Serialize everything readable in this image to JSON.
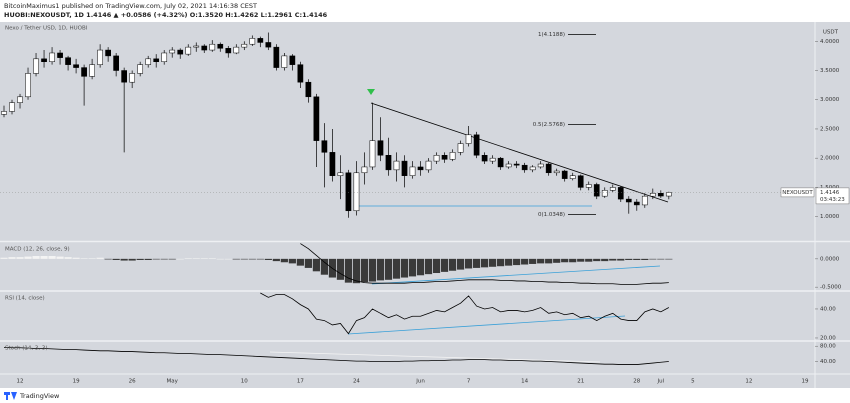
{
  "header": {
    "published": "BitcoinMaximus1 published on TradingView.com, July 02, 2021 14:16:38 CEST",
    "symbol_line": "HUOBI:NEXOUSDT, 1D 1.4146 ▲ +0.0586 (+4.32%) O:1.3520 H:1.4262 L:1.2961 C:1.4146"
  },
  "footer": {
    "brand": "TradingView"
  },
  "chart_data": [
    {
      "type": "candlestick",
      "title": "Nexo / Tether USD, 1D, HUOBI",
      "y_label": "USDT",
      "grid": false,
      "categories": [
        null,
        null,
        "12",
        null,
        null,
        null,
        null,
        null,
        null,
        "19",
        null,
        null,
        null,
        null,
        null,
        null,
        "26",
        null,
        null,
        null,
        null,
        "May",
        null,
        null,
        null,
        null,
        null,
        null,
        null,
        null,
        "10",
        null,
        null,
        null,
        null,
        null,
        null,
        "17",
        null,
        null,
        null,
        null,
        null,
        null,
        "24",
        null,
        null,
        null,
        null,
        null,
        null,
        null,
        "Jun",
        null,
        null,
        null,
        null,
        null,
        "7",
        null,
        null,
        null,
        null,
        null,
        null,
        "14",
        null,
        null,
        null,
        null,
        null,
        null,
        "21",
        null,
        null,
        null,
        null,
        null,
        null,
        "28",
        null,
        null,
        "Jul",
        null,
        null,
        null,
        "5",
        null,
        null,
        null,
        null,
        null,
        null,
        "12",
        null,
        null,
        null,
        null,
        null,
        null,
        "19"
      ],
      "series": [
        {
          "name": "NEXOUSDT",
          "up_color": "#ffffff",
          "down_color": "#000000",
          "open": [
            2.75,
            2.8,
            2.95,
            3.05,
            3.45,
            3.7,
            3.65,
            3.8,
            3.72,
            3.6,
            3.55,
            3.4,
            3.6,
            3.85,
            3.75,
            3.5,
            3.3,
            3.45,
            3.6,
            3.7,
            3.65,
            3.8,
            3.85,
            3.78,
            3.9,
            3.92,
            3.85,
            3.95,
            3.88,
            3.8,
            3.9,
            3.95,
            4.05,
            3.98,
            3.9,
            3.55,
            3.75,
            3.6,
            3.3,
            3.05,
            2.3,
            2.1,
            1.7,
            1.75,
            1.1,
            1.75,
            1.85,
            2.3,
            2.05,
            1.8,
            1.95,
            1.7,
            1.85,
            1.8,
            1.95,
            2.05,
            1.98,
            2.1,
            2.25,
            2.4,
            2.05,
            1.95,
            2.0,
            1.85,
            1.9,
            1.88,
            1.8,
            1.85,
            1.9,
            1.75,
            1.78,
            1.65,
            1.7,
            1.5,
            1.55,
            1.35,
            1.45,
            1.5,
            1.3,
            1.25,
            1.2,
            1.35,
            1.4,
            1.352,
            null,
            null,
            null,
            null,
            null,
            null,
            null,
            null,
            null,
            null,
            null,
            null,
            null,
            null,
            null,
            null,
            null
          ],
          "high": [
            2.9,
            3.0,
            3.1,
            3.55,
            3.8,
            3.85,
            3.9,
            3.85,
            3.75,
            3.7,
            3.6,
            3.7,
            3.95,
            3.9,
            3.8,
            3.55,
            3.5,
            3.65,
            3.75,
            3.78,
            3.85,
            3.9,
            3.88,
            3.95,
            3.98,
            3.95,
            4.02,
            3.98,
            3.92,
            3.95,
            4.0,
            4.1,
            4.08,
            4.15,
            3.95,
            3.8,
            3.78,
            3.65,
            3.35,
            3.1,
            2.6,
            2.5,
            2.05,
            1.8,
            1.95,
            2.1,
            2.95,
            2.7,
            2.35,
            2.1,
            2.05,
            1.95,
            1.95,
            2.0,
            2.1,
            2.1,
            2.15,
            2.3,
            2.55,
            2.45,
            2.1,
            2.05,
            2.02,
            1.95,
            1.95,
            1.92,
            1.88,
            1.95,
            1.92,
            1.82,
            1.8,
            1.75,
            1.72,
            1.6,
            1.58,
            1.5,
            1.55,
            1.52,
            1.35,
            1.3,
            1.4,
            1.48,
            1.45,
            1.4262,
            null,
            null,
            null,
            null,
            null,
            null,
            null,
            null,
            null,
            null,
            null,
            null,
            null,
            null,
            null,
            null,
            null
          ],
          "low": [
            2.7,
            2.75,
            2.85,
            3.0,
            3.4,
            3.55,
            3.6,
            3.6,
            3.5,
            3.45,
            2.9,
            3.35,
            3.55,
            3.65,
            3.4,
            2.1,
            3.2,
            3.4,
            3.55,
            3.55,
            3.6,
            3.72,
            3.7,
            3.75,
            3.82,
            3.8,
            3.82,
            3.82,
            3.72,
            3.78,
            3.85,
            3.92,
            3.9,
            3.85,
            3.5,
            3.5,
            3.5,
            3.2,
            2.95,
            1.85,
            1.5,
            1.6,
            1.3,
            0.98,
            1.02,
            1.55,
            1.8,
            1.95,
            1.7,
            1.6,
            1.5,
            1.65,
            1.7,
            1.75,
            1.9,
            1.92,
            1.95,
            2.05,
            2.2,
            2.0,
            1.9,
            1.9,
            1.8,
            1.82,
            1.83,
            1.75,
            1.76,
            1.82,
            1.7,
            1.7,
            1.6,
            1.62,
            1.45,
            1.45,
            1.3,
            1.32,
            1.42,
            1.25,
            1.05,
            1.1,
            1.15,
            1.3,
            1.32,
            1.2961,
            null,
            null,
            null,
            null,
            null,
            null,
            null,
            null,
            null,
            null,
            null,
            null,
            null,
            null,
            null,
            null,
            null
          ],
          "close": [
            2.8,
            2.95,
            3.05,
            3.45,
            3.7,
            3.65,
            3.8,
            3.72,
            3.6,
            3.55,
            3.4,
            3.6,
            3.85,
            3.75,
            3.5,
            3.3,
            3.45,
            3.6,
            3.7,
            3.65,
            3.8,
            3.85,
            3.78,
            3.9,
            3.92,
            3.85,
            3.95,
            3.88,
            3.8,
            3.9,
            3.95,
            4.05,
            3.98,
            3.9,
            3.55,
            3.75,
            3.6,
            3.3,
            3.05,
            2.3,
            2.1,
            1.7,
            1.75,
            1.1,
            1.75,
            1.85,
            2.3,
            2.05,
            1.8,
            1.95,
            1.7,
            1.85,
            1.8,
            1.95,
            2.05,
            1.98,
            2.1,
            2.25,
            2.4,
            2.05,
            1.95,
            2.0,
            1.85,
            1.9,
            1.88,
            1.8,
            1.85,
            1.9,
            1.75,
            1.78,
            1.65,
            1.7,
            1.5,
            1.55,
            1.35,
            1.45,
            1.5,
            1.3,
            1.25,
            1.2,
            1.35,
            1.4,
            1.352,
            1.4146,
            null,
            null,
            null,
            null,
            null,
            null,
            null,
            null,
            null,
            null,
            null,
            null,
            null,
            null,
            null,
            null,
            null
          ]
        }
      ],
      "ylim": [
        0.6,
        4.33
      ],
      "yticks": [
        {
          "value": 1,
          "label": "1.0000"
        },
        {
          "value": 1.5,
          "label": "1.5000"
        },
        {
          "value": 2,
          "label": "2.0000"
        },
        {
          "value": 2.5,
          "label": "2.5000"
        },
        {
          "value": 3,
          "label": "3.0000"
        },
        {
          "value": 3.5,
          "label": "3.5000"
        },
        {
          "value": 4,
          "label": "4.0000"
        }
      ],
      "fib_levels": [
        {
          "value": 4.1188,
          "label": "1(4.1188)"
        },
        {
          "value": 2.5768,
          "label": "0.5(2.5768)"
        },
        {
          "value": 1.0348,
          "label": "0(1.0348)"
        }
      ],
      "last_price": {
        "value": 1.4146,
        "countdown": "03:43:23"
      }
    },
    {
      "type": "macd",
      "title": "MACD (12, 26, close, 9)",
      "histogram": [
        0.02,
        0.03,
        0.03,
        0.04,
        0.05,
        0.05,
        0.05,
        0.04,
        0.03,
        0.02,
        0.01,
        0.01,
        0.02,
        -0.01,
        -0.02,
        -0.03,
        -0.03,
        -0.02,
        -0.02,
        -0.01,
        -0.01,
        -0.01,
        0,
        0.01,
        0.01,
        0.01,
        0.01,
        0,
        0,
        -0.01,
        -0.01,
        -0.01,
        -0.01,
        -0.02,
        -0.04,
        -0.06,
        -0.08,
        -0.12,
        -0.16,
        -0.22,
        -0.28,
        -0.33,
        -0.37,
        -0.42,
        -0.43,
        -0.41,
        -0.4,
        -0.38,
        -0.37,
        -0.35,
        -0.33,
        -0.31,
        -0.29,
        -0.27,
        -0.25,
        -0.23,
        -0.21,
        -0.19,
        -0.17,
        -0.16,
        -0.15,
        -0.14,
        -0.13,
        -0.12,
        -0.11,
        -0.1,
        -0.09,
        -0.08,
        -0.08,
        -0.07,
        -0.06,
        -0.06,
        -0.05,
        -0.05,
        -0.04,
        -0.04,
        -0.03,
        -0.03,
        -0.02,
        -0.02,
        -0.02,
        -0.01,
        -0.01,
        -0.01,
        null,
        null,
        null,
        null,
        null,
        null,
        null,
        null,
        null,
        null,
        null,
        null,
        null,
        null,
        null,
        null,
        null
      ],
      "histogram_colors": {
        "positive": "#f4f4f4",
        "negative": "#3a3a3a"
      },
      "series": [
        {
          "color": "#000000",
          "values": [
            null,
            null,
            null,
            null,
            null,
            null,
            null,
            null,
            null,
            null,
            null,
            null,
            null,
            null,
            null,
            null,
            null,
            null,
            null,
            null,
            null,
            null,
            null,
            null,
            null,
            null,
            null,
            null,
            null,
            null,
            null,
            null,
            null,
            null,
            null,
            null,
            null,
            0.27,
            0.18,
            0.06,
            -0.06,
            -0.17,
            -0.26,
            -0.34,
            -0.39,
            -0.42,
            -0.43,
            -0.43,
            -0.43,
            -0.43,
            -0.43,
            -0.42,
            -0.42,
            -0.41,
            -0.4,
            -0.4,
            -0.39,
            -0.38,
            -0.37,
            -0.37,
            -0.37,
            -0.37,
            -0.38,
            -0.38,
            -0.39,
            -0.39,
            -0.4,
            -0.4,
            -0.41,
            -0.41,
            -0.42,
            -0.42,
            -0.43,
            -0.43,
            -0.44,
            -0.44,
            -0.44,
            -0.45,
            -0.45,
            -0.45,
            -0.44,
            -0.43,
            -0.43,
            -0.42,
            null,
            null,
            null,
            null,
            null,
            null,
            null,
            null,
            null,
            null,
            null,
            null,
            null,
            null,
            null,
            null,
            null
          ]
        }
      ],
      "ylim": [
        -0.55,
        0.28
      ],
      "yticks": [
        {
          "value": 0,
          "label": "0.0000"
        },
        {
          "value": -0.5,
          "label": "-0.5000"
        }
      ]
    },
    {
      "type": "line",
      "title": "RSI (14, close)",
      "series": [
        {
          "color": "#000000",
          "values": [
            null,
            null,
            null,
            null,
            null,
            null,
            null,
            null,
            null,
            null,
            null,
            null,
            null,
            null,
            null,
            null,
            null,
            null,
            null,
            null,
            null,
            null,
            null,
            null,
            null,
            null,
            null,
            null,
            null,
            null,
            null,
            null,
            51,
            48,
            50,
            50,
            47,
            43,
            40,
            33,
            32,
            29,
            30,
            23,
            32,
            34,
            40,
            37,
            34,
            36,
            33,
            35,
            35,
            37,
            39,
            38,
            41,
            44,
            49,
            42,
            40,
            41,
            38,
            39,
            39,
            38,
            39,
            41,
            37,
            38,
            36,
            37,
            34,
            35,
            32,
            35,
            37,
            33,
            32,
            32,
            38,
            40,
            38,
            41,
            null,
            null,
            null,
            null,
            null,
            null,
            null,
            null,
            null,
            null,
            null,
            null,
            null,
            null,
            null,
            null,
            null
          ]
        }
      ],
      "ylim": [
        18.6,
        51.7
      ],
      "yticks": [
        {
          "value": 40,
          "label": "40.00"
        },
        {
          "value": 20,
          "label": "20.00"
        }
      ]
    },
    {
      "type": "line",
      "title": "Stoch (14, 3, 3)",
      "series": [
        {
          "color": "#000000",
          "values": [
            77,
            76,
            76,
            75,
            74,
            74,
            73,
            72,
            71,
            71,
            70,
            69,
            68,
            68,
            67,
            66,
            66,
            65,
            64,
            63,
            63,
            62,
            61,
            61,
            60,
            59,
            58,
            58,
            57,
            56,
            55,
            54,
            53,
            52,
            51,
            50,
            49,
            48,
            47,
            46,
            45,
            44,
            43,
            42,
            41,
            41,
            40,
            40,
            40,
            40,
            41,
            41,
            42,
            42,
            43,
            43,
            44,
            44,
            45,
            45,
            45,
            44,
            44,
            43,
            43,
            42,
            41,
            41,
            40,
            39,
            38,
            37,
            36,
            35,
            34,
            33,
            33,
            32,
            32,
            32,
            34,
            36,
            38,
            40,
            null,
            null,
            null,
            null,
            null,
            null,
            null,
            null,
            null,
            null,
            null,
            null,
            null,
            null,
            null,
            null,
            null
          ]
        }
      ],
      "ylim": [
        10,
        91
      ],
      "yticks": [
        {
          "value": 80,
          "label": "80.00"
        },
        {
          "value": 40,
          "label": "40.00"
        }
      ]
    }
  ]
}
